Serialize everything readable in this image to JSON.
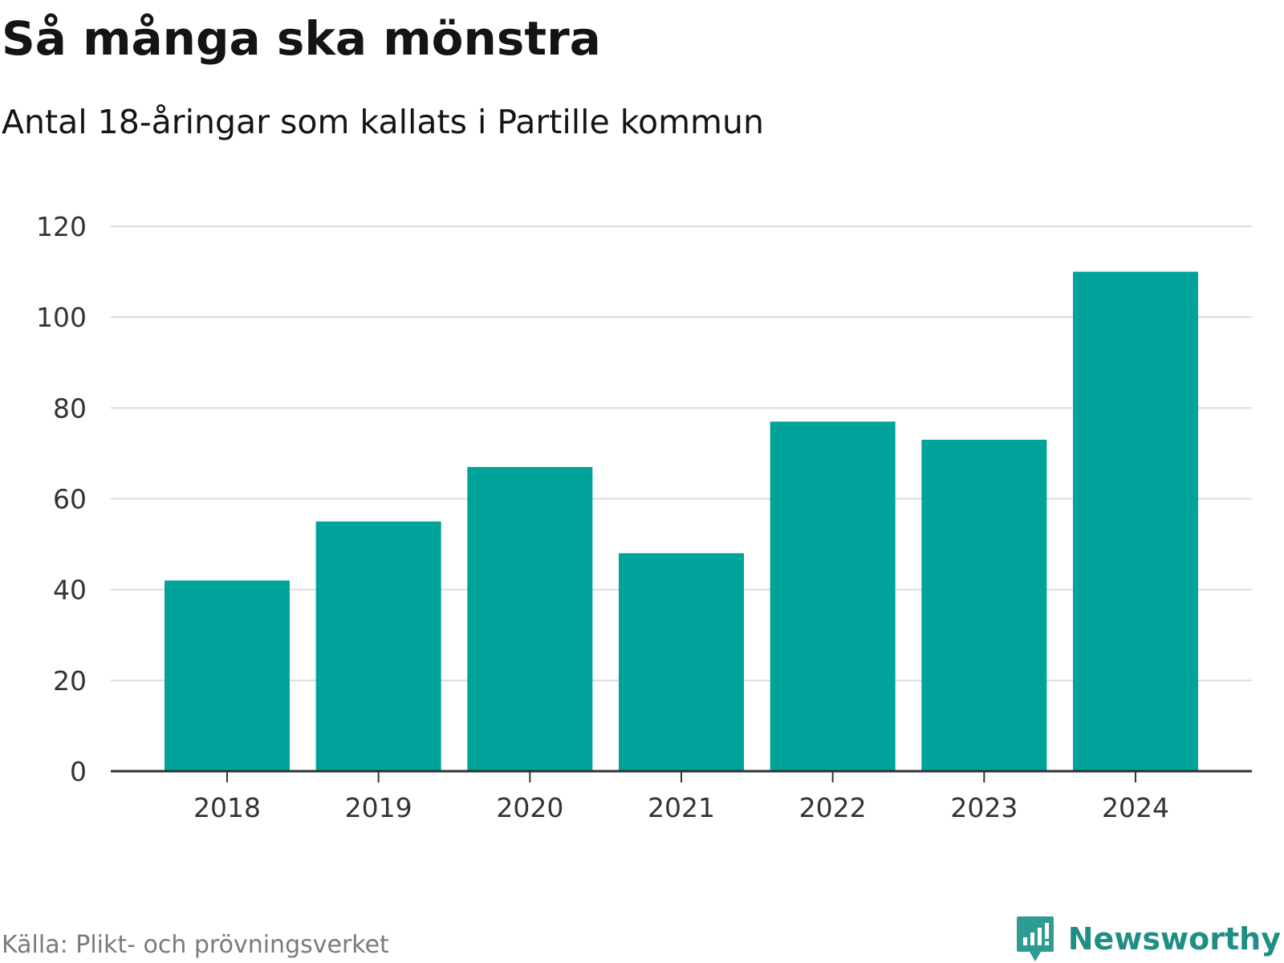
{
  "header": {
    "title": "Så många ska mönstra",
    "subtitle": "Antal 18-åringar som kallats i Partille kommun"
  },
  "footer": {
    "source": "Källa: Plikt- och prövningsverket",
    "brand": "Newsworthy",
    "brand_icon": "newsworthy-logo-icon"
  },
  "colors": {
    "bar": "#00A39A",
    "grid": "#dcdcdc",
    "axis": "#333333",
    "tick_text": "#333333",
    "brand": "#1f8f86"
  },
  "chart_data": {
    "type": "bar",
    "title": "Så många ska mönstra",
    "subtitle": "Antal 18-åringar som kallats i Partille kommun",
    "categories": [
      "2018",
      "2019",
      "2020",
      "2021",
      "2022",
      "2023",
      "2024"
    ],
    "values": [
      42,
      55,
      67,
      48,
      77,
      73,
      110
    ],
    "xlabel": "",
    "ylabel": "",
    "ylim": [
      0,
      120
    ],
    "yticks": [
      0,
      20,
      40,
      60,
      80,
      100,
      120
    ],
    "grid": true,
    "legend": "none"
  }
}
